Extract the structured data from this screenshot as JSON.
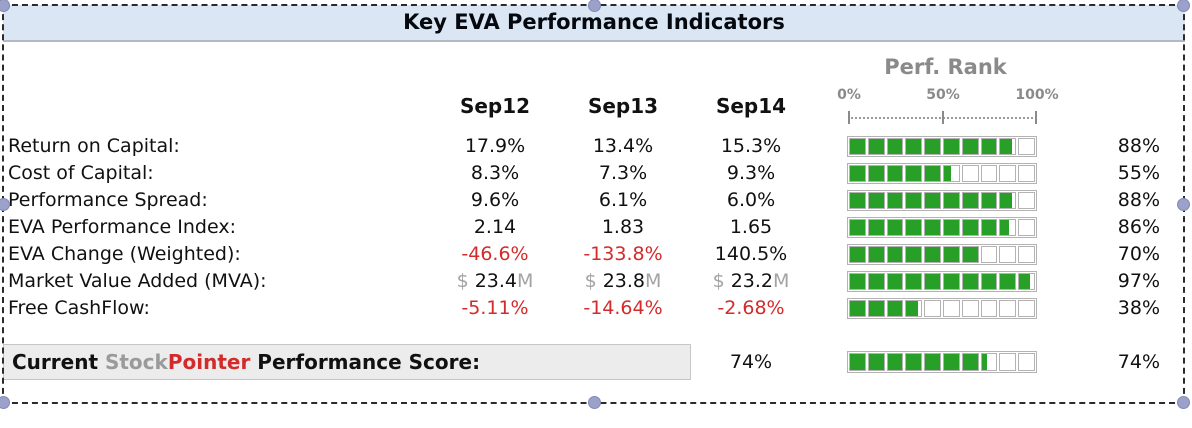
{
  "title": "Key EVA Performance Indicators",
  "columns": [
    "Sep12",
    "Sep13",
    "Sep14"
  ],
  "perf_rank": {
    "title": "Perf. Rank",
    "scale": [
      "0%",
      "50%",
      "100%"
    ]
  },
  "rows": [
    {
      "label": "Return on Capital:",
      "values": [
        {
          "t": "17.9%",
          "c": "black"
        },
        {
          "t": "13.4%",
          "c": "black"
        },
        {
          "t": "15.3%",
          "c": "black"
        }
      ],
      "rank": 88,
      "rank_label": "88%"
    },
    {
      "label": "Cost of Capital:",
      "values": [
        {
          "t": "8.3%",
          "c": "black"
        },
        {
          "t": "7.3%",
          "c": "black"
        },
        {
          "t": "9.3%",
          "c": "black"
        }
      ],
      "rank": 55,
      "rank_label": "55%"
    },
    {
      "label": "Performance Spread:",
      "values": [
        {
          "t": "9.6%",
          "c": "black"
        },
        {
          "t": "6.1%",
          "c": "black"
        },
        {
          "t": "6.0%",
          "c": "black"
        }
      ],
      "rank": 88,
      "rank_label": "88%"
    },
    {
      "label": "EVA Performance Index:",
      "values": [
        {
          "t": "2.14",
          "c": "black"
        },
        {
          "t": "1.83",
          "c": "black"
        },
        {
          "t": "1.65",
          "c": "black"
        }
      ],
      "rank": 86,
      "rank_label": "86%"
    },
    {
      "label": "EVA Change (Weighted):",
      "values": [
        {
          "t": "-46.6%",
          "c": "red"
        },
        {
          "t": "-133.8%",
          "c": "red"
        },
        {
          "t": "140.5%",
          "c": "black"
        }
      ],
      "rank": 70,
      "rank_label": "70%"
    },
    {
      "label": "Market Value Added (MVA):",
      "values": [
        {
          "pre": "$ ",
          "t": "23.4",
          "suf": "M"
        },
        {
          "pre": "$ ",
          "t": "23.8",
          "suf": "M"
        },
        {
          "pre": "$ ",
          "t": "23.2",
          "suf": "M"
        }
      ],
      "rank": 97,
      "rank_label": "97%"
    },
    {
      "label": "Free CashFlow:",
      "values": [
        {
          "t": "-5.11%",
          "c": "red"
        },
        {
          "t": "-14.64%",
          "c": "red"
        },
        {
          "t": "-2.68%",
          "c": "red"
        }
      ],
      "rank": 38,
      "rank_label": "38%"
    }
  ],
  "footer": {
    "parts": [
      {
        "t": "Current ",
        "c": "black"
      },
      {
        "t": "Stock",
        "c": "gray"
      },
      {
        "t": "Pointer",
        "c": "red"
      },
      {
        "t": " Performance Score:",
        "c": "black"
      }
    ],
    "score": "74%",
    "rank": 74,
    "rank_label": "74%"
  },
  "colors": {
    "bar_green": "#28a028",
    "negative_red": "#d32b2b",
    "muted_gray": "#9a9a9a",
    "title_bg": "#dae6f3"
  }
}
